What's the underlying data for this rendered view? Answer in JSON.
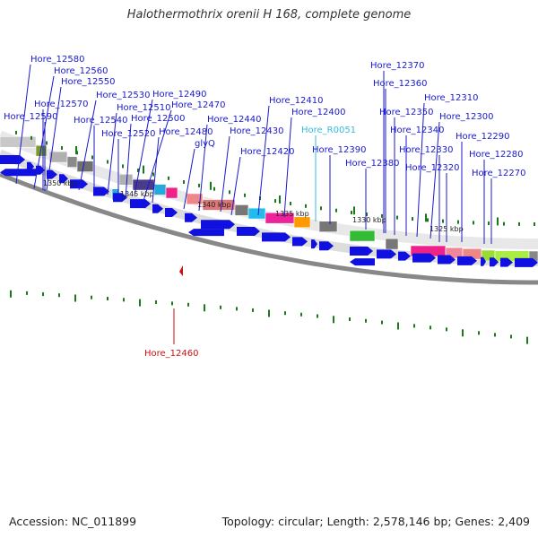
{
  "title": "Halothermothrix orenii H 168, complete genome",
  "footer": {
    "accession": "Accession: NC_011899",
    "summary": "Topology: circular; Length: 2,578,146 bp; Genes: 2,409"
  },
  "colors": {
    "label": "#1a1acc",
    "rna_label": "#33bbdd",
    "selected_label": "#cc1111",
    "arrow": "#1010e0",
    "tick": "#1a7a1a"
  },
  "scale_labels": [
    "1350 kbp",
    "1345 kbp",
    "1340 kbp",
    "1335 kbp",
    "1330 kbp",
    "1325 kbp"
  ],
  "gene_labels": [
    "Hore_12580",
    "Hore_12560",
    "Hore_12550",
    "Hore_12570",
    "Hore_12530",
    "Hore_12590",
    "Hore_12540",
    "Hore_12510",
    "Hore_12490",
    "Hore_12500",
    "Hore_12470",
    "Hore_12520",
    "Hore_12480",
    "glyQ",
    "Hore_12440",
    "Hore_12430",
    "Hore_12410",
    "Hore_12400",
    "Hore_R0051",
    "Hore_12420",
    "Hore_12390",
    "Hore_12380",
    "Hore_12370",
    "Hore_12360",
    "Hore_12350",
    "Hore_12310",
    "Hore_12340",
    "Hore_12300",
    "Hore_12330",
    "Hore_12290",
    "Hore_12320",
    "Hore_12280",
    "Hore_12270"
  ],
  "selected_gene": "Hore_12460"
}
